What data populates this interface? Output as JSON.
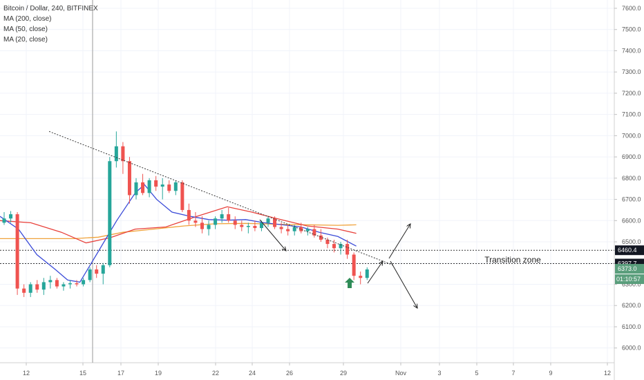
{
  "legend": {
    "symbol": "Bitcoin / Dollar, 240, BITFINEX",
    "ma200": "MA (200, close)",
    "ma50": "MA (50, close)",
    "ma20": "MA (20, close)"
  },
  "colors": {
    "up": "#26a69a",
    "down": "#ef5350",
    "ma200": "#f0a23a",
    "ma50": "#e8403a",
    "ma20": "#3b4bd8",
    "arrow_up": "#2e8b57"
  },
  "chart_data": {
    "type": "candlestick",
    "title": "Bitcoin / Dollar, 240, BITFINEX",
    "y_ticks": [
      6000,
      6100,
      6200,
      6300,
      6400,
      6500,
      6600,
      6700,
      6800,
      6900,
      7000,
      7100,
      7200,
      7300,
      7400,
      7500,
      7600
    ],
    "y_tick_labels": [
      "6000.0",
      "6100.0",
      "6200.0",
      "6300.0",
      "6400.0",
      "6500.0",
      "6600.0",
      "6700.0",
      "6800.0",
      "6900.0",
      "7000.0",
      "7100.0",
      "7200.0",
      "7300.0",
      "7400.0",
      "7500.0",
      "7600.0"
    ],
    "ylim": [
      5960,
      7650
    ],
    "x_ticks": [
      "12",
      "15",
      "17",
      "19",
      "22",
      "24",
      "26",
      "29",
      "Nov",
      "3",
      "5",
      "7",
      "9",
      "12"
    ],
    "price_tags": {
      "level_high": "6460.4",
      "level_low": "6397.7",
      "last": "6373.0",
      "timer": "01:10:57"
    },
    "zones": [
      6460.4,
      6397.7
    ],
    "annotation": "Transition zone",
    "trendline": [
      [
        0.08,
        7020
      ],
      [
        0.64,
        6390
      ]
    ],
    "ma200": [
      [
        0.0,
        6515
      ],
      [
        0.12,
        6515
      ],
      [
        0.16,
        6522
      ],
      [
        0.2,
        6545
      ],
      [
        0.25,
        6560
      ],
      [
        0.3,
        6575
      ],
      [
        0.35,
        6585
      ],
      [
        0.4,
        6587
      ],
      [
        0.45,
        6583
      ],
      [
        0.5,
        6580
      ],
      [
        0.55,
        6578
      ],
      [
        0.58,
        6580
      ]
    ],
    "ma50": [
      [
        0.0,
        6600
      ],
      [
        0.05,
        6590
      ],
      [
        0.1,
        6545
      ],
      [
        0.14,
        6495
      ],
      [
        0.18,
        6520
      ],
      [
        0.22,
        6560
      ],
      [
        0.27,
        6570
      ],
      [
        0.32,
        6620
      ],
      [
        0.37,
        6665
      ],
      [
        0.41,
        6640
      ],
      [
        0.45,
        6610
      ],
      [
        0.5,
        6575
      ],
      [
        0.55,
        6560
      ],
      [
        0.58,
        6540
      ]
    ],
    "ma20": [
      [
        0.0,
        6620
      ],
      [
        0.03,
        6560
      ],
      [
        0.06,
        6440
      ],
      [
        0.09,
        6370
      ],
      [
        0.11,
        6320
      ],
      [
        0.13,
        6310
      ],
      [
        0.155,
        6430
      ],
      [
        0.19,
        6600
      ],
      [
        0.22,
        6730
      ],
      [
        0.235,
        6770
      ],
      [
        0.255,
        6700
      ],
      [
        0.28,
        6640
      ],
      [
        0.31,
        6620
      ],
      [
        0.34,
        6605
      ],
      [
        0.37,
        6602
      ],
      [
        0.4,
        6605
      ],
      [
        0.43,
        6590
      ],
      [
        0.46,
        6580
      ],
      [
        0.49,
        6570
      ],
      [
        0.52,
        6545
      ],
      [
        0.55,
        6525
      ],
      [
        0.58,
        6480
      ]
    ],
    "candles": [
      [
        6590,
        6640,
        6580,
        6610
      ],
      [
        6610,
        6645,
        6590,
        6630
      ],
      [
        6630,
        6640,
        6250,
        6280
      ],
      [
        6280,
        6300,
        6240,
        6260
      ],
      [
        6260,
        6310,
        6240,
        6300
      ],
      [
        6300,
        6320,
        6260,
        6275
      ],
      [
        6275,
        6330,
        6250,
        6310
      ],
      [
        6310,
        6340,
        6280,
        6320
      ],
      [
        6320,
        6330,
        6280,
        6290
      ],
      [
        6290,
        6310,
        6270,
        6300
      ],
      [
        6300,
        6320,
        6280,
        6305
      ],
      [
        6305,
        6320,
        6290,
        6300
      ],
      [
        6300,
        6330,
        6290,
        6320
      ],
      [
        6320,
        6380,
        6310,
        6370
      ],
      [
        6370,
        6390,
        6330,
        6350
      ],
      [
        6350,
        6400,
        6300,
        6390
      ],
      [
        6390,
        6900,
        6380,
        6880
      ],
      [
        6880,
        7020,
        6850,
        6950
      ],
      [
        6950,
        6970,
        6820,
        6880
      ],
      [
        6880,
        6900,
        6680,
        6720
      ],
      [
        6720,
        6800,
        6700,
        6780
      ],
      [
        6780,
        6820,
        6720,
        6730
      ],
      [
        6730,
        6800,
        6710,
        6790
      ],
      [
        6790,
        6810,
        6740,
        6760
      ],
      [
        6760,
        6800,
        6700,
        6770
      ],
      [
        6770,
        6790,
        6730,
        6740
      ],
      [
        6740,
        6790,
        6720,
        6780
      ],
      [
        6780,
        6790,
        6640,
        6650
      ],
      [
        6650,
        6680,
        6580,
        6600
      ],
      [
        6600,
        6640,
        6570,
        6590
      ],
      [
        6590,
        6620,
        6540,
        6560
      ],
      [
        6560,
        6600,
        6530,
        6580
      ],
      [
        6580,
        6620,
        6560,
        6610
      ],
      [
        6610,
        6650,
        6590,
        6630
      ],
      [
        6630,
        6660,
        6590,
        6600
      ],
      [
        6600,
        6620,
        6560,
        6580
      ],
      [
        6580,
        6600,
        6550,
        6570
      ],
      [
        6570,
        6590,
        6540,
        6575
      ],
      [
        6575,
        6600,
        6550,
        6565
      ],
      [
        6565,
        6600,
        6550,
        6590
      ],
      [
        6590,
        6620,
        6570,
        6610
      ],
      [
        6610,
        6620,
        6560,
        6570
      ],
      [
        6570,
        6590,
        6540,
        6560
      ],
      [
        6560,
        6580,
        6530,
        6550
      ],
      [
        6550,
        6580,
        6530,
        6570
      ],
      [
        6570,
        6590,
        6540,
        6550
      ],
      [
        6550,
        6570,
        6530,
        6560
      ],
      [
        6560,
        6580,
        6520,
        6530
      ],
      [
        6530,
        6560,
        6500,
        6510
      ],
      [
        6510,
        6520,
        6470,
        6490
      ],
      [
        6490,
        6510,
        6450,
        6470
      ],
      [
        6470,
        6500,
        6440,
        6490
      ],
      [
        6490,
        6510,
        6420,
        6440
      ],
      [
        6440,
        6450,
        6320,
        6340
      ],
      [
        6340,
        6360,
        6300,
        6330
      ],
      [
        6330,
        6380,
        6320,
        6370
      ]
    ]
  }
}
